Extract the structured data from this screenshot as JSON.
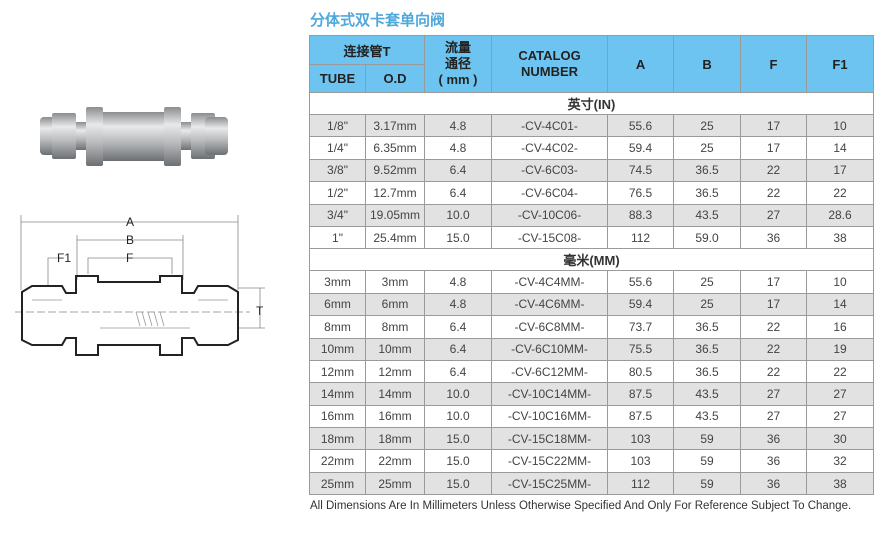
{
  "title": "分体式双卡套单向阀",
  "drawing": {
    "labels": {
      "a": "A",
      "b": "B",
      "f": "F",
      "f1": "F1",
      "t": "T"
    }
  },
  "table": {
    "headers": {
      "tube_group": "连接管T",
      "tube": "TUBE",
      "od": "O.D",
      "flow": "流量\n通径\n( mm )",
      "flow_lines": [
        "流量",
        "通径",
        "( mm )"
      ],
      "catalog_lines": [
        "CATALOG",
        "NUMBER"
      ],
      "a": "A",
      "b": "B",
      "f": "F",
      "f1": "F1"
    },
    "sections": [
      {
        "label": "英寸(IN)",
        "rows": [
          [
            "1/8\"",
            "3.17mm",
            "4.8",
            "-CV-4C01-",
            "55.6",
            "25",
            "17",
            "10"
          ],
          [
            "1/4\"",
            "6.35mm",
            "4.8",
            "-CV-4C02-",
            "59.4",
            "25",
            "17",
            "14"
          ],
          [
            "3/8\"",
            "9.52mm",
            "6.4",
            "-CV-6C03-",
            "74.5",
            "36.5",
            "22",
            "17"
          ],
          [
            "1/2\"",
            "12.7mm",
            "6.4",
            "-CV-6C04-",
            "76.5",
            "36.5",
            "22",
            "22"
          ],
          [
            "3/4\"",
            "19.05mm",
            "10.0",
            "-CV-10C06-",
            "88.3",
            "43.5",
            "27",
            "28.6"
          ],
          [
            "1\"",
            "25.4mm",
            "15.0",
            "-CV-15C08-",
            "112",
            "59.0",
            "36",
            "38"
          ]
        ]
      },
      {
        "label": "毫米(MM)",
        "rows": [
          [
            "3mm",
            "3mm",
            "4.8",
            "-CV-4C4MM-",
            "55.6",
            "25",
            "17",
            "10"
          ],
          [
            "6mm",
            "6mm",
            "4.8",
            "-CV-4C6MM-",
            "59.4",
            "25",
            "17",
            "14"
          ],
          [
            "8mm",
            "8mm",
            "6.4",
            "-CV-6C8MM-",
            "73.7",
            "36.5",
            "22",
            "16"
          ],
          [
            "10mm",
            "10mm",
            "6.4",
            "-CV-6C10MM-",
            "75.5",
            "36.5",
            "22",
            "19"
          ],
          [
            "12mm",
            "12mm",
            "6.4",
            "-CV-6C12MM-",
            "80.5",
            "36.5",
            "22",
            "22"
          ],
          [
            "14mm",
            "14mm",
            "10.0",
            "-CV-10C14MM-",
            "87.5",
            "43.5",
            "27",
            "27"
          ],
          [
            "16mm",
            "16mm",
            "10.0",
            "-CV-10C16MM-",
            "87.5",
            "43.5",
            "27",
            "27"
          ],
          [
            "18mm",
            "18mm",
            "15.0",
            "-CV-15C18MM-",
            "103",
            "59",
            "36",
            "30"
          ],
          [
            "22mm",
            "22mm",
            "15.0",
            "-CV-15C22MM-",
            "103",
            "59",
            "36",
            "32"
          ],
          [
            "25mm",
            "25mm",
            "15.0",
            "-CV-15C25MM-",
            "112",
            "59",
            "36",
            "38"
          ]
        ]
      }
    ]
  },
  "footnote": "All Dimensions Are In Millimeters Unless Otherwise Specified And Only For Reference Subject To Change.",
  "colors": {
    "title": "#4fa8dc",
    "header_bg": "#6ec4f0",
    "stripe": "#e2e2e2"
  }
}
